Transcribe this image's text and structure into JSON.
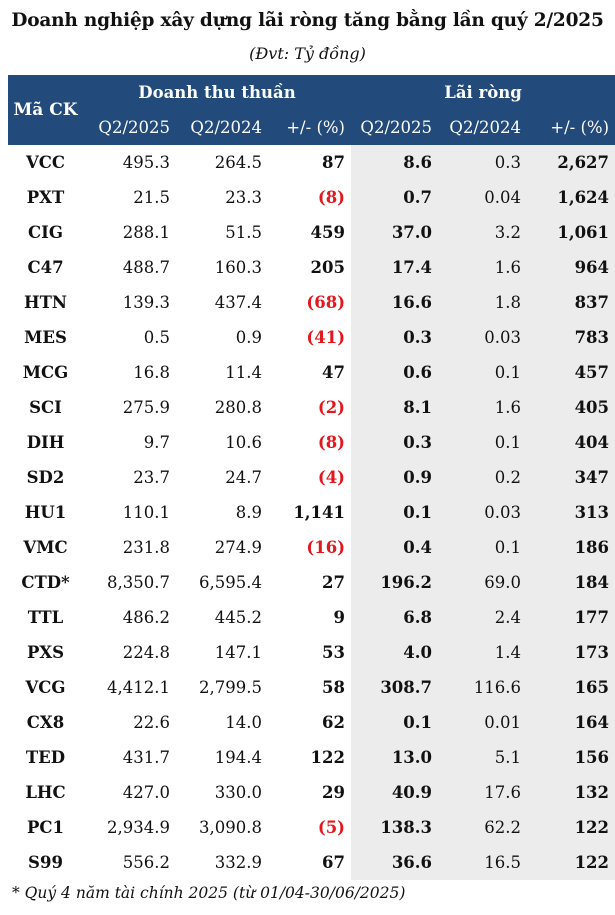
{
  "title": "Doanh nghiệp xây dựng lãi ròng tăng bằng lần quý 2/2025",
  "unit": "(Đvt: Tỷ đồng)",
  "header": {
    "code": "Mã CK",
    "group_revenue": "Doanh thu thuần",
    "group_profit": "Lãi ròng",
    "col_q2_2025": "Q2/2025",
    "col_q2_2024": "Q2/2024",
    "col_change": "+/- (%)"
  },
  "rows": [
    {
      "code": "VCC",
      "rev25": "495.3",
      "rev24": "264.5",
      "revchg": "87",
      "revneg": false,
      "np25": "8.6",
      "np24": "0.3",
      "npchg": "2,627"
    },
    {
      "code": "PXT",
      "rev25": "21.5",
      "rev24": "23.3",
      "revchg": "(8)",
      "revneg": true,
      "np25": "0.7",
      "np24": "0.04",
      "npchg": "1,624"
    },
    {
      "code": "CIG",
      "rev25": "288.1",
      "rev24": "51.5",
      "revchg": "459",
      "revneg": false,
      "np25": "37.0",
      "np24": "3.2",
      "npchg": "1,061"
    },
    {
      "code": "C47",
      "rev25": "488.7",
      "rev24": "160.3",
      "revchg": "205",
      "revneg": false,
      "np25": "17.4",
      "np24": "1.6",
      "npchg": "964"
    },
    {
      "code": "HTN",
      "rev25": "139.3",
      "rev24": "437.4",
      "revchg": "(68)",
      "revneg": true,
      "np25": "16.6",
      "np24": "1.8",
      "npchg": "837"
    },
    {
      "code": "MES",
      "rev25": "0.5",
      "rev24": "0.9",
      "revchg": "(41)",
      "revneg": true,
      "np25": "0.3",
      "np24": "0.03",
      "npchg": "783"
    },
    {
      "code": "MCG",
      "rev25": "16.8",
      "rev24": "11.4",
      "revchg": "47",
      "revneg": false,
      "np25": "0.6",
      "np24": "0.1",
      "npchg": "457"
    },
    {
      "code": "SCI",
      "rev25": "275.9",
      "rev24": "280.8",
      "revchg": "(2)",
      "revneg": true,
      "np25": "8.1",
      "np24": "1.6",
      "npchg": "405"
    },
    {
      "code": "DIH",
      "rev25": "9.7",
      "rev24": "10.6",
      "revchg": "(8)",
      "revneg": true,
      "np25": "0.3",
      "np24": "0.1",
      "npchg": "404"
    },
    {
      "code": "SD2",
      "rev25": "23.7",
      "rev24": "24.7",
      "revchg": "(4)",
      "revneg": true,
      "np25": "0.9",
      "np24": "0.2",
      "npchg": "347"
    },
    {
      "code": "HU1",
      "rev25": "110.1",
      "rev24": "8.9",
      "revchg": "1,141",
      "revneg": false,
      "np25": "0.1",
      "np24": "0.03",
      "npchg": "313"
    },
    {
      "code": "VMC",
      "rev25": "231.8",
      "rev24": "274.9",
      "revchg": "(16)",
      "revneg": true,
      "np25": "0.4",
      "np24": "0.1",
      "npchg": "186"
    },
    {
      "code": "CTD*",
      "rev25": "8,350.7",
      "rev24": "6,595.4",
      "revchg": "27",
      "revneg": false,
      "np25": "196.2",
      "np24": "69.0",
      "npchg": "184"
    },
    {
      "code": "TTL",
      "rev25": "486.2",
      "rev24": "445.2",
      "revchg": "9",
      "revneg": false,
      "np25": "6.8",
      "np24": "2.4",
      "npchg": "177"
    },
    {
      "code": "PXS",
      "rev25": "224.8",
      "rev24": "147.1",
      "revchg": "53",
      "revneg": false,
      "np25": "4.0",
      "np24": "1.4",
      "npchg": "173"
    },
    {
      "code": "VCG",
      "rev25": "4,412.1",
      "rev24": "2,799.5",
      "revchg": "58",
      "revneg": false,
      "np25": "308.7",
      "np24": "116.6",
      "npchg": "165"
    },
    {
      "code": "CX8",
      "rev25": "22.6",
      "rev24": "14.0",
      "revchg": "62",
      "revneg": false,
      "np25": "0.1",
      "np24": "0.01",
      "npchg": "164"
    },
    {
      "code": "TED",
      "rev25": "431.7",
      "rev24": "194.4",
      "revchg": "122",
      "revneg": false,
      "np25": "13.0",
      "np24": "5.1",
      "npchg": "156"
    },
    {
      "code": "LHC",
      "rev25": "427.0",
      "rev24": "330.0",
      "revchg": "29",
      "revneg": false,
      "np25": "40.9",
      "np24": "17.6",
      "npchg": "132"
    },
    {
      "code": "PC1",
      "rev25": "2,934.9",
      "rev24": "3,090.8",
      "revchg": "(5)",
      "revneg": true,
      "np25": "138.3",
      "np24": "62.2",
      "npchg": "122"
    },
    {
      "code": "S99",
      "rev25": "556.2",
      "rev24": "332.9",
      "revchg": "67",
      "revneg": false,
      "np25": "36.6",
      "np24": "16.5",
      "npchg": "122"
    }
  ],
  "footnote": "* Quý 4 năm tài chính 2025 (từ 01/04-30/06/2025)",
  "colors": {
    "header_bg": "#224a7b",
    "negative": "#e0191e",
    "profit_bg": "#ececec"
  }
}
